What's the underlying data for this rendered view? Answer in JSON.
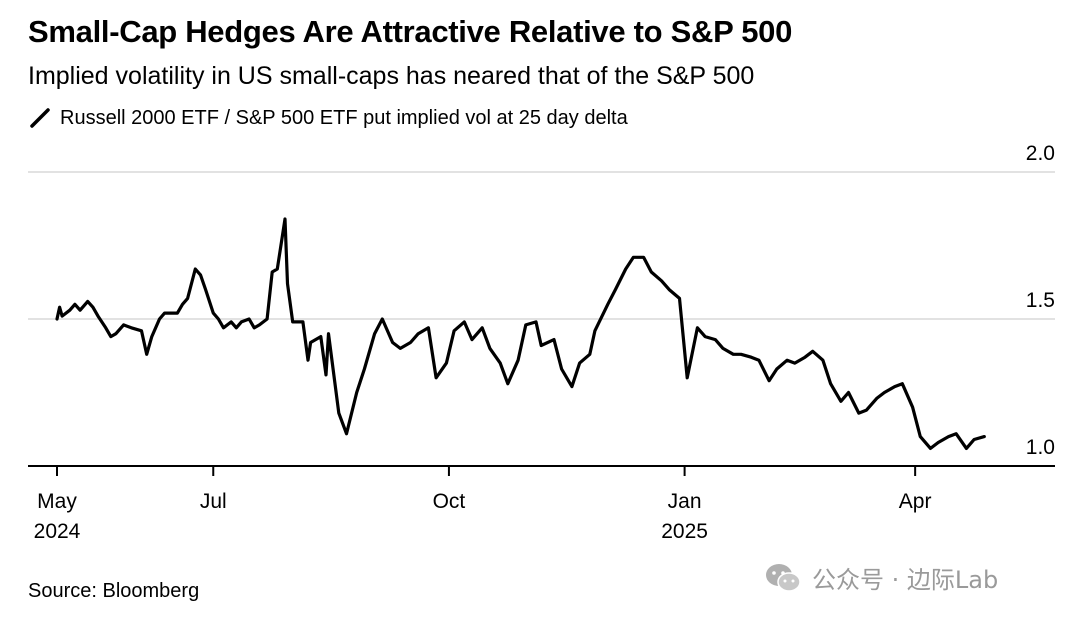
{
  "header": {
    "title": "Small-Cap Hedges Are Attractive Relative to S&P 500",
    "subtitle": "Implied volatility in US small-caps has neared that of the S&P 500"
  },
  "footer": {
    "source": "Source: Bloomberg",
    "watermark": "公众号 · 边际Lab"
  },
  "colors": {
    "line": "#000000",
    "grid": "#d9d9d9",
    "axis": "#000000",
    "watermark": "#9a9a9a"
  },
  "chart_data": {
    "type": "line",
    "title": "Small-Cap Hedges Are Attractive Relative to S&P 500",
    "subtitle": "Implied volatility in US small-caps has neared that of the S&P 500",
    "legend": {
      "position": "top-left",
      "entries": [
        "Russell 2000 ETF / S&P 500 ETF put implied vol at 25 day delta"
      ]
    },
    "grid": true,
    "y_axis": {
      "position": "right",
      "range": [
        1.0,
        2.0
      ],
      "ticks": [
        {
          "value": 2.0,
          "label": "2.0"
        },
        {
          "value": 1.5,
          "label": "1.5"
        },
        {
          "value": 1.0,
          "label": "1.0"
        }
      ]
    },
    "x_axis": {
      "range": [
        "2024-05-01",
        "2025-05-01"
      ],
      "ticks": [
        {
          "date": "2024-05-01",
          "label": "May",
          "year": "2024"
        },
        {
          "date": "2024-07-01",
          "label": "Jul",
          "year": ""
        },
        {
          "date": "2024-10-01",
          "label": "Oct",
          "year": ""
        },
        {
          "date": "2025-01-01",
          "label": "Jan",
          "year": "2025"
        },
        {
          "date": "2025-04-01",
          "label": "Apr",
          "year": ""
        }
      ]
    },
    "series": [
      {
        "name": "Russell 2000 ETF / S&P 500 ETF put implied vol at 25 day delta",
        "points": [
          [
            "2024-05-01",
            1.5
          ],
          [
            "2024-05-02",
            1.54
          ],
          [
            "2024-05-03",
            1.51
          ],
          [
            "2024-05-06",
            1.53
          ],
          [
            "2024-05-08",
            1.55
          ],
          [
            "2024-05-10",
            1.53
          ],
          [
            "2024-05-13",
            1.56
          ],
          [
            "2024-05-15",
            1.54
          ],
          [
            "2024-05-17",
            1.51
          ],
          [
            "2024-05-20",
            1.47
          ],
          [
            "2024-05-22",
            1.44
          ],
          [
            "2024-05-24",
            1.45
          ],
          [
            "2024-05-27",
            1.48
          ],
          [
            "2024-05-30",
            1.47
          ],
          [
            "2024-06-03",
            1.46
          ],
          [
            "2024-06-05",
            1.38
          ],
          [
            "2024-06-07",
            1.44
          ],
          [
            "2024-06-10",
            1.5
          ],
          [
            "2024-06-12",
            1.52
          ],
          [
            "2024-06-14",
            1.52
          ],
          [
            "2024-06-17",
            1.52
          ],
          [
            "2024-06-19",
            1.55
          ],
          [
            "2024-06-21",
            1.57
          ],
          [
            "2024-06-24",
            1.67
          ],
          [
            "2024-06-26",
            1.65
          ],
          [
            "2024-06-28",
            1.6
          ],
          [
            "2024-07-01",
            1.52
          ],
          [
            "2024-07-03",
            1.5
          ],
          [
            "2024-07-05",
            1.47
          ],
          [
            "2024-07-08",
            1.49
          ],
          [
            "2024-07-10",
            1.47
          ],
          [
            "2024-07-12",
            1.49
          ],
          [
            "2024-07-15",
            1.5
          ],
          [
            "2024-07-17",
            1.47
          ],
          [
            "2024-07-19",
            1.48
          ],
          [
            "2024-07-22",
            1.5
          ],
          [
            "2024-07-24",
            1.66
          ],
          [
            "2024-07-26",
            1.67
          ],
          [
            "2024-07-29",
            1.84
          ],
          [
            "2024-07-30",
            1.62
          ],
          [
            "2024-08-01",
            1.49
          ],
          [
            "2024-08-05",
            1.49
          ],
          [
            "2024-08-07",
            1.36
          ],
          [
            "2024-08-08",
            1.42
          ],
          [
            "2024-08-12",
            1.44
          ],
          [
            "2024-08-14",
            1.31
          ],
          [
            "2024-08-15",
            1.45
          ],
          [
            "2024-08-19",
            1.18
          ],
          [
            "2024-08-22",
            1.11
          ],
          [
            "2024-08-26",
            1.25
          ],
          [
            "2024-08-29",
            1.33
          ],
          [
            "2024-09-02",
            1.45
          ],
          [
            "2024-09-05",
            1.5
          ],
          [
            "2024-09-09",
            1.42
          ],
          [
            "2024-09-12",
            1.4
          ],
          [
            "2024-09-16",
            1.42
          ],
          [
            "2024-09-19",
            1.45
          ],
          [
            "2024-09-23",
            1.47
          ],
          [
            "2024-09-26",
            1.3
          ],
          [
            "2024-09-30",
            1.35
          ],
          [
            "2024-10-03",
            1.46
          ],
          [
            "2024-10-07",
            1.49
          ],
          [
            "2024-10-10",
            1.43
          ],
          [
            "2024-10-14",
            1.47
          ],
          [
            "2024-10-17",
            1.4
          ],
          [
            "2024-10-21",
            1.35
          ],
          [
            "2024-10-24",
            1.28
          ],
          [
            "2024-10-28",
            1.36
          ],
          [
            "2024-10-31",
            1.48
          ],
          [
            "2024-11-04",
            1.49
          ],
          [
            "2024-11-06",
            1.41
          ],
          [
            "2024-11-11",
            1.43
          ],
          [
            "2024-11-14",
            1.33
          ],
          [
            "2024-11-18",
            1.27
          ],
          [
            "2024-11-21",
            1.35
          ],
          [
            "2024-11-25",
            1.38
          ],
          [
            "2024-11-27",
            1.46
          ],
          [
            "2024-12-02",
            1.55
          ],
          [
            "2024-12-05",
            1.6
          ],
          [
            "2024-12-09",
            1.67
          ],
          [
            "2024-12-12",
            1.71
          ],
          [
            "2024-12-16",
            1.71
          ],
          [
            "2024-12-19",
            1.66
          ],
          [
            "2024-12-23",
            1.63
          ],
          [
            "2024-12-26",
            1.6
          ],
          [
            "2024-12-30",
            1.57
          ],
          [
            "2025-01-02",
            1.3
          ],
          [
            "2025-01-06",
            1.47
          ],
          [
            "2025-01-09",
            1.44
          ],
          [
            "2025-01-13",
            1.43
          ],
          [
            "2025-01-16",
            1.4
          ],
          [
            "2025-01-20",
            1.38
          ],
          [
            "2025-01-23",
            1.38
          ],
          [
            "2025-01-27",
            1.37
          ],
          [
            "2025-01-30",
            1.36
          ],
          [
            "2025-02-03",
            1.29
          ],
          [
            "2025-02-06",
            1.33
          ],
          [
            "2025-02-10",
            1.36
          ],
          [
            "2025-02-13",
            1.35
          ],
          [
            "2025-02-17",
            1.37
          ],
          [
            "2025-02-20",
            1.39
          ],
          [
            "2025-02-24",
            1.36
          ],
          [
            "2025-02-27",
            1.28
          ],
          [
            "2025-03-03",
            1.22
          ],
          [
            "2025-03-06",
            1.25
          ],
          [
            "2025-03-10",
            1.18
          ],
          [
            "2025-03-13",
            1.19
          ],
          [
            "2025-03-17",
            1.23
          ],
          [
            "2025-03-20",
            1.25
          ],
          [
            "2025-03-24",
            1.27
          ],
          [
            "2025-03-27",
            1.28
          ],
          [
            "2025-03-31",
            1.2
          ],
          [
            "2025-04-03",
            1.1
          ],
          [
            "2025-04-07",
            1.06
          ],
          [
            "2025-04-10",
            1.08
          ],
          [
            "2025-04-14",
            1.1
          ],
          [
            "2025-04-17",
            1.11
          ],
          [
            "2025-04-21",
            1.06
          ],
          [
            "2025-04-24",
            1.09
          ],
          [
            "2025-04-28",
            1.1
          ]
        ]
      }
    ]
  }
}
